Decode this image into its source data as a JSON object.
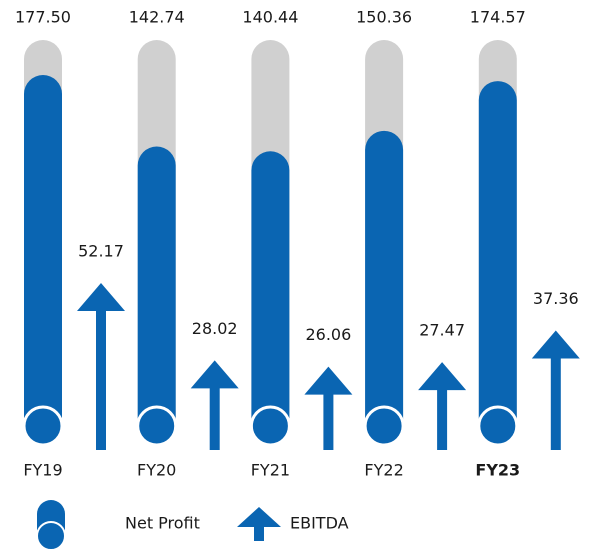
{
  "chart_data": {
    "type": "capsule-arrow",
    "categories": [
      "FY19",
      "FY20",
      "FY21",
      "FY22",
      "FY23"
    ],
    "highlight_category": 4,
    "track_color": "#d0d0d0",
    "series": [
      {
        "name": "Net Profit",
        "color": "#0a65b2",
        "values": [
          177.5,
          142.74,
          140.44,
          150.36,
          174.57
        ],
        "value_labels": [
          "177.50",
          "142.74",
          "140.44",
          "150.36",
          "174.57"
        ]
      },
      {
        "name": "EBITDA",
        "color": "#0a65b2",
        "values": [
          52.17,
          28.02,
          26.06,
          27.47,
          37.36
        ],
        "value_labels": [
          "52.17",
          "28.02",
          "26.06",
          "27.47",
          "37.36"
        ]
      }
    ]
  }
}
